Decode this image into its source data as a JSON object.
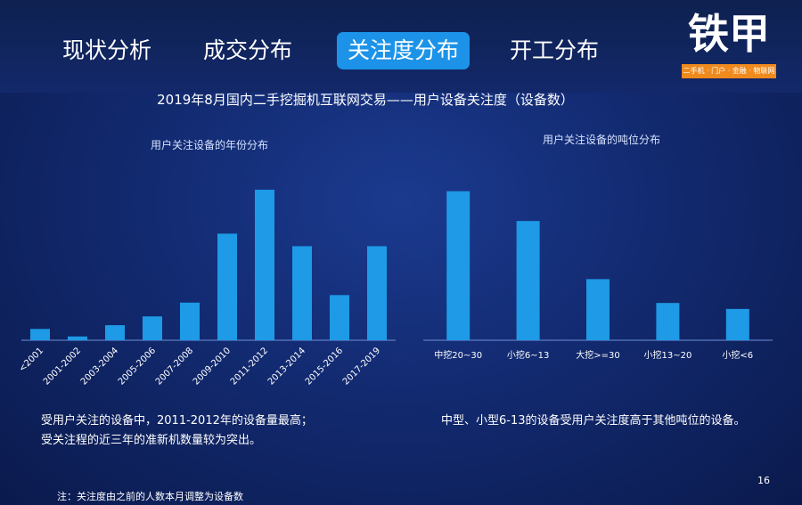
{
  "nav": {
    "tabs": [
      {
        "label": "现状分析"
      },
      {
        "label": "成交分布"
      },
      {
        "label": "关注度分布"
      },
      {
        "label": "开工分布"
      }
    ],
    "active_index": 2
  },
  "brand": {
    "logo_text": "铁甲",
    "tagline": "二手机 · 门户 · 金融 · 物联网",
    "accent_color": "#f08a1d"
  },
  "page_title": "2019年8月国内二手挖掘机互联网交易——用户设备关注度（设备数）",
  "chart_data": [
    {
      "type": "bar",
      "title": "用户关注设备的年份分布",
      "categories": [
        "<2001",
        "2001-2002",
        "2003-2004",
        "2005-2006",
        "2007-2008",
        "2009-2010",
        "2011-2012",
        "2013-2014",
        "2015-2016",
        "2017-2019"
      ],
      "values": [
        9,
        3,
        12,
        19,
        30,
        85,
        120,
        75,
        36,
        75
      ],
      "ylim": [
        0,
        125
      ],
      "grid": false,
      "bar_color": "#1e9ae6",
      "tick_rotation": -45
    },
    {
      "type": "bar",
      "title": "用户关注设备的吨位分布",
      "categories": [
        "中挖20~30",
        "小挖6~13",
        "大挖>=30",
        "小挖13~20",
        "小挖<6"
      ],
      "values": [
        100,
        80,
        41,
        25,
        21
      ],
      "ylim": [
        0,
        104
      ],
      "grid": false,
      "bar_color": "#1e9ae6",
      "tick_rotation": 0
    }
  ],
  "notes": {
    "left": [
      "受用户关注的设备中，2011-2012年的设备量最高；",
      "受关注程的近三年的准新机数量较为突出。"
    ],
    "right": [
      "中型、小型6-13的设备受用户关注度高于其他吨位的设备。"
    ],
    "footnote": "注：关注度由之前的人数本月调整为设备数"
  },
  "page_number": "16"
}
